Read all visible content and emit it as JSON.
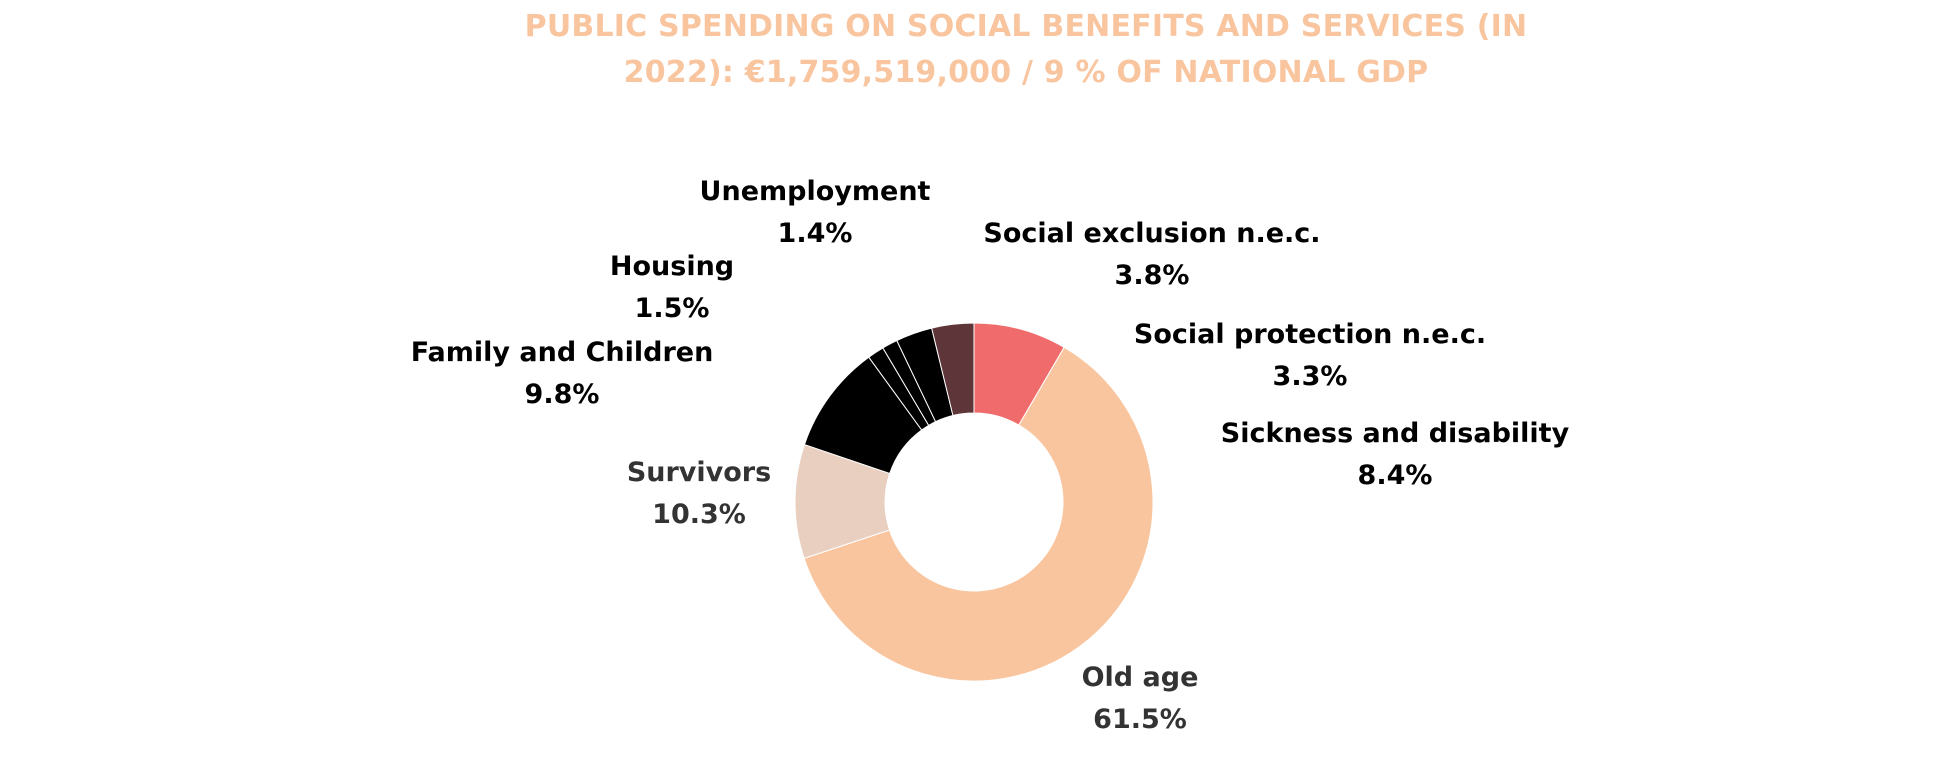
{
  "chart_data": {
    "type": "pie",
    "donut": true,
    "title": "PUBLIC SPENDING ON SOCIAL BENEFITS AND SERVICES (IN 2022): €1,759,519,000 / 9 % OF NATIONAL GDP",
    "legend": "none",
    "slices": [
      {
        "label": "Sickness and disability",
        "value": 8.4,
        "display": "8.4%",
        "color": "#f06c6c",
        "text_color": "#000000"
      },
      {
        "label": "Old age",
        "value": 61.5,
        "display": "61.5%",
        "color": "#f9c59f",
        "text_color": "#333333"
      },
      {
        "label": "Survivors",
        "value": 10.3,
        "display": "10.3%",
        "color": "#e8cfc0",
        "text_color": "#333333"
      },
      {
        "label": "Family and Children",
        "value": 9.8,
        "display": "9.8%",
        "color": "#000000",
        "text_color": "#000000"
      },
      {
        "label": "Housing",
        "value": 1.5,
        "display": "1.5%",
        "color": "#000000",
        "text_color": "#000000"
      },
      {
        "label": "Unemployment",
        "value": 1.4,
        "display": "1.4%",
        "color": "#000000",
        "text_color": "#000000"
      },
      {
        "label": "Social protection n.e.c.",
        "value": 3.3,
        "display": "3.3%",
        "color": "#000000",
        "text_color": "#000000"
      },
      {
        "label": "Social exclusion n.e.c.",
        "value": 3.8,
        "display": "3.8%",
        "color": "#5e3539",
        "text_color": "#000000"
      }
    ]
  }
}
